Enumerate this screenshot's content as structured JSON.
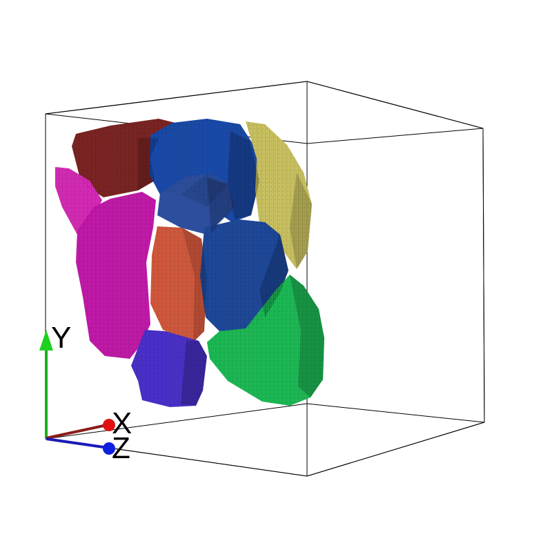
{
  "axes": {
    "x": {
      "label": "X",
      "color": "#8b1a1a",
      "tip_color": "#e01010"
    },
    "y": {
      "label": "Y",
      "color": "#1ab01a",
      "tip_color": "#20d020"
    },
    "z": {
      "label": "Z",
      "color": "#1a1ab8",
      "tip_color": "#1020e0"
    }
  },
  "grains": [
    {
      "name": "grain-dark-red",
      "color": "#7a2424"
    },
    {
      "name": "grain-magenta-upper",
      "color": "#d42ab4"
    },
    {
      "name": "grain-magenta",
      "color": "#c01aa8"
    },
    {
      "name": "grain-blue-top",
      "color": "#1a4aa8"
    },
    {
      "name": "grain-steel-blue",
      "color": "#2c4e9c"
    },
    {
      "name": "grain-khaki",
      "color": "#c8c060"
    },
    {
      "name": "grain-orange",
      "color": "#d0583c"
    },
    {
      "name": "grain-blue-center",
      "color": "#1e4898"
    },
    {
      "name": "grain-green",
      "color": "#1cb854"
    },
    {
      "name": "grain-violet",
      "color": "#4a30c8"
    }
  ]
}
